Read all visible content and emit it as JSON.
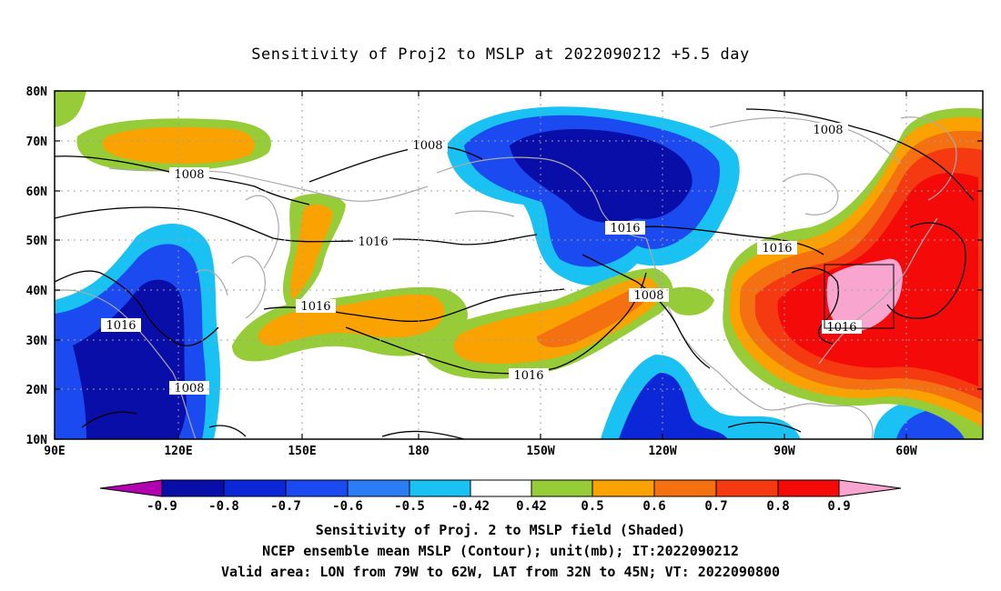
{
  "title": "Sensitivity of Proj2 to MSLP at 2022090212 +5.5 day",
  "colors": {
    "c_m09": "#b000b0",
    "c_m08": "#0a0ea8",
    "c_m07": "#0b27d8",
    "c_m06": "#1b4af0",
    "c_m05": "#2b7cf5",
    "c_m042": "#19c2f2",
    "c_neutral": "#ffffff",
    "c_042": "#96cc37",
    "c_05": "#f9a200",
    "c_06": "#f57010",
    "c_07": "#f53a12",
    "c_08": "#f50a0a",
    "c_09": "#f8a6d0",
    "coast": "#a9a9a9",
    "contour": "#000000",
    "grid": "#a0a0a0"
  },
  "map": {
    "lat_labels": [
      "80N",
      "70N",
      "60N",
      "50N",
      "40N",
      "30N",
      "20N",
      "10N"
    ],
    "lon_labels": [
      "90E",
      "120E",
      "150E",
      "180",
      "150W",
      "120W",
      "90W",
      "60W"
    ],
    "contour_labels": [
      "1008",
      "1008",
      "1008",
      "1016",
      "1016",
      "1016",
      "1016",
      "1016",
      "1008",
      "1016",
      "1016",
      "1008"
    ],
    "valid_area_box": {
      "lon_from": "79W",
      "lon_to": "62W",
      "lat_from": "32N",
      "lat_to": "45N"
    }
  },
  "colorbar": {
    "labels": [
      "-0.9",
      "-0.8",
      "-0.7",
      "-0.6",
      "-0.5",
      "-0.42",
      "0.42",
      "0.5",
      "0.6",
      "0.7",
      "0.8",
      "0.9"
    ]
  },
  "footer": {
    "line1": "Sensitivity of Proj. 2 to MSLP field (Shaded)",
    "line2": "NCEP ensemble mean MSLP (Contour); unit(mb); IT:2022090212",
    "line3": "Valid area: LON from 79W to 62W, LAT from 32N to 45N; VT: 2022090800"
  }
}
